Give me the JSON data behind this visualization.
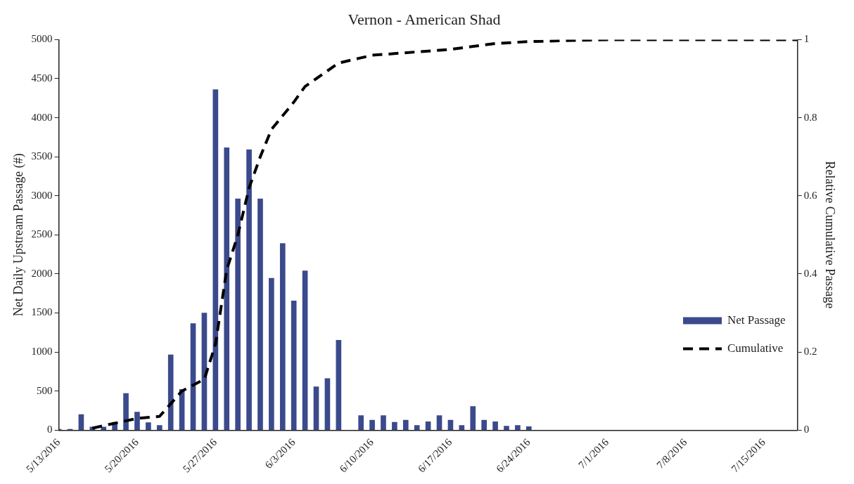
{
  "chart_data": {
    "type": "bar",
    "title": "Vernon - American Shad",
    "ylabel": "Net Daily Upstream Passage (#)",
    "y2label": "Relative Cumulative Passage",
    "x": [
      "2016-05-13",
      "2016-05-14",
      "2016-05-15",
      "2016-05-16",
      "2016-05-17",
      "2016-05-18",
      "2016-05-19",
      "2016-05-20",
      "2016-05-21",
      "2016-05-22",
      "2016-05-23",
      "2016-05-24",
      "2016-05-25",
      "2016-05-26",
      "2016-05-27",
      "2016-05-28",
      "2016-05-29",
      "2016-05-30",
      "2016-05-31",
      "2016-06-01",
      "2016-06-02",
      "2016-06-03",
      "2016-06-04",
      "2016-06-05",
      "2016-06-06",
      "2016-06-07",
      "2016-06-08",
      "2016-06-09",
      "2016-06-10",
      "2016-06-11",
      "2016-06-12",
      "2016-06-13",
      "2016-06-14",
      "2016-06-15",
      "2016-06-16",
      "2016-06-17",
      "2016-06-18",
      "2016-06-19",
      "2016-06-20",
      "2016-06-21",
      "2016-06-22",
      "2016-06-23",
      "2016-06-24"
    ],
    "series": [
      {
        "name": "Net Passage",
        "color": "#3b4a8c",
        "values": [
          10,
          10,
          200,
          40,
          40,
          100,
          470,
          230,
          95,
          60,
          965,
          520,
          1365,
          1500,
          4360,
          3615,
          2960,
          3590,
          2960,
          1945,
          2390,
          1655,
          2040,
          555,
          660,
          1150,
          0,
          185,
          128,
          185,
          101,
          128,
          61,
          108,
          185,
          128,
          61,
          303,
          128,
          108,
          50,
          61,
          44
        ]
      },
      {
        "name": "Cumulative",
        "type": "line",
        "axis": "y2",
        "color": "#000000",
        "line_style": "dashed",
        "marker": "none",
        "x": [
          "2016-05-16",
          "2016-05-20",
          "2016-05-22",
          "2016-05-24",
          "2016-05-26",
          "2016-05-27",
          "2016-05-28",
          "2016-05-29",
          "2016-05-30",
          "2016-05-31",
          "2016-06-01",
          "2016-06-03",
          "2016-06-04",
          "2016-06-05",
          "2016-06-07",
          "2016-06-10",
          "2016-06-17",
          "2016-06-21",
          "2016-06-24",
          "2016-07-01",
          "2016-07-18"
        ],
        "values": [
          0.005,
          0.03,
          0.035,
          0.1,
          0.13,
          0.22,
          0.41,
          0.5,
          0.62,
          0.7,
          0.77,
          0.84,
          0.88,
          0.9,
          0.94,
          0.96,
          0.975,
          0.99,
          0.995,
          1,
          1
        ]
      }
    ],
    "xlim": [
      "2016-05-13",
      "2016-07-18"
    ],
    "xticks": [
      {
        "value": "2016-05-13",
        "label": "5/13/2016"
      },
      {
        "value": "2016-05-20",
        "label": "5/20/2016"
      },
      {
        "value": "2016-05-27",
        "label": "5/27/2016"
      },
      {
        "value": "2016-06-03",
        "label": "6/3/2016"
      },
      {
        "value": "2016-06-10",
        "label": "6/10/2016"
      },
      {
        "value": "2016-06-17",
        "label": "6/17/2016"
      },
      {
        "value": "2016-06-24",
        "label": "6/24/2016"
      },
      {
        "value": "2016-07-01",
        "label": "7/1/2016"
      },
      {
        "value": "2016-07-08",
        "label": "7/8/2016"
      },
      {
        "value": "2016-07-15",
        "label": "7/15/2016"
      }
    ],
    "ylim": [
      0,
      5000
    ],
    "yticks": [
      0,
      500,
      1000,
      1500,
      2000,
      2500,
      3000,
      3500,
      4000,
      4500,
      5000
    ],
    "y2lim": [
      0,
      1
    ],
    "y2ticks": [
      0,
      0.2,
      0.4,
      0.6,
      0.8,
      1
    ],
    "legend": "right"
  }
}
